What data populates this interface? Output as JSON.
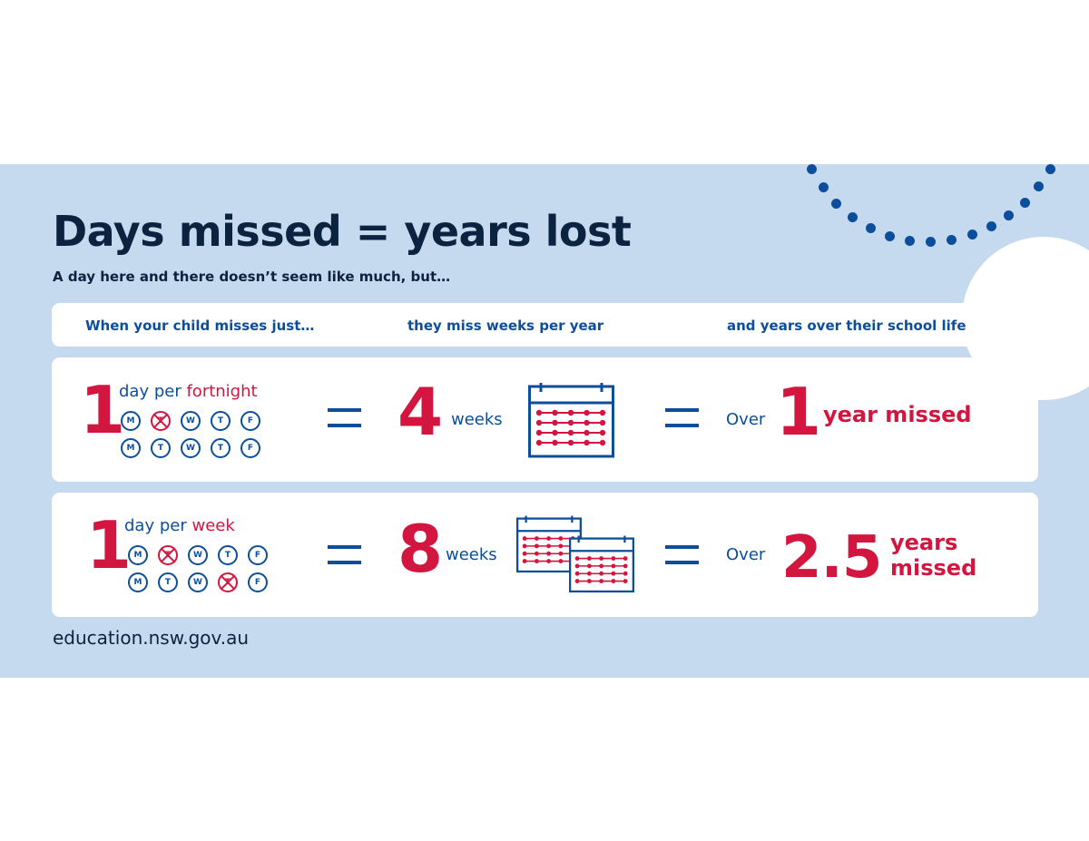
{
  "title": "Days missed = years lost",
  "subtitle": "A day here and there doesn’t seem like much, but…",
  "headers": {
    "col1": "When your child misses just…",
    "col2": "they miss weeks per year",
    "col3": "and years over their school life"
  },
  "rows": [
    {
      "days_missed": "1",
      "freq_prefix": "day per",
      "freq_unit": "fortnight",
      "week1": [
        {
          "label": "M",
          "missed": false
        },
        {
          "label": "T",
          "missed": true
        },
        {
          "label": "W",
          "missed": false
        },
        {
          "label": "T",
          "missed": false
        },
        {
          "label": "F",
          "missed": false
        }
      ],
      "week2": [
        {
          "label": "M",
          "missed": false
        },
        {
          "label": "T",
          "missed": false
        },
        {
          "label": "W",
          "missed": false
        },
        {
          "label": "T",
          "missed": false
        },
        {
          "label": "F",
          "missed": false
        }
      ],
      "weeks_value": "4",
      "weeks_label": "weeks",
      "over_label": "Over",
      "years_value": "1",
      "years_label": "year missed"
    },
    {
      "days_missed": "1",
      "freq_prefix": "day per",
      "freq_unit": "week",
      "week1": [
        {
          "label": "M",
          "missed": false
        },
        {
          "label": "T",
          "missed": true
        },
        {
          "label": "W",
          "missed": false
        },
        {
          "label": "T",
          "missed": false
        },
        {
          "label": "F",
          "missed": false
        }
      ],
      "week2": [
        {
          "label": "M",
          "missed": false
        },
        {
          "label": "T",
          "missed": false
        },
        {
          "label": "W",
          "missed": false
        },
        {
          "label": "T",
          "missed": true
        },
        {
          "label": "F",
          "missed": false
        }
      ],
      "weeks_value": "8",
      "weeks_label": "weeks",
      "over_label": "Over",
      "years_value": "2.5",
      "years_label_line1": "years",
      "years_label_line2": "missed"
    }
  ],
  "footer_url": "education.nsw.gov.au",
  "colors": {
    "navy": "#0c2340",
    "blue": "#0c4e9c",
    "red": "#d3163f",
    "panel": "#c6daef",
    "card": "#ffffff"
  }
}
